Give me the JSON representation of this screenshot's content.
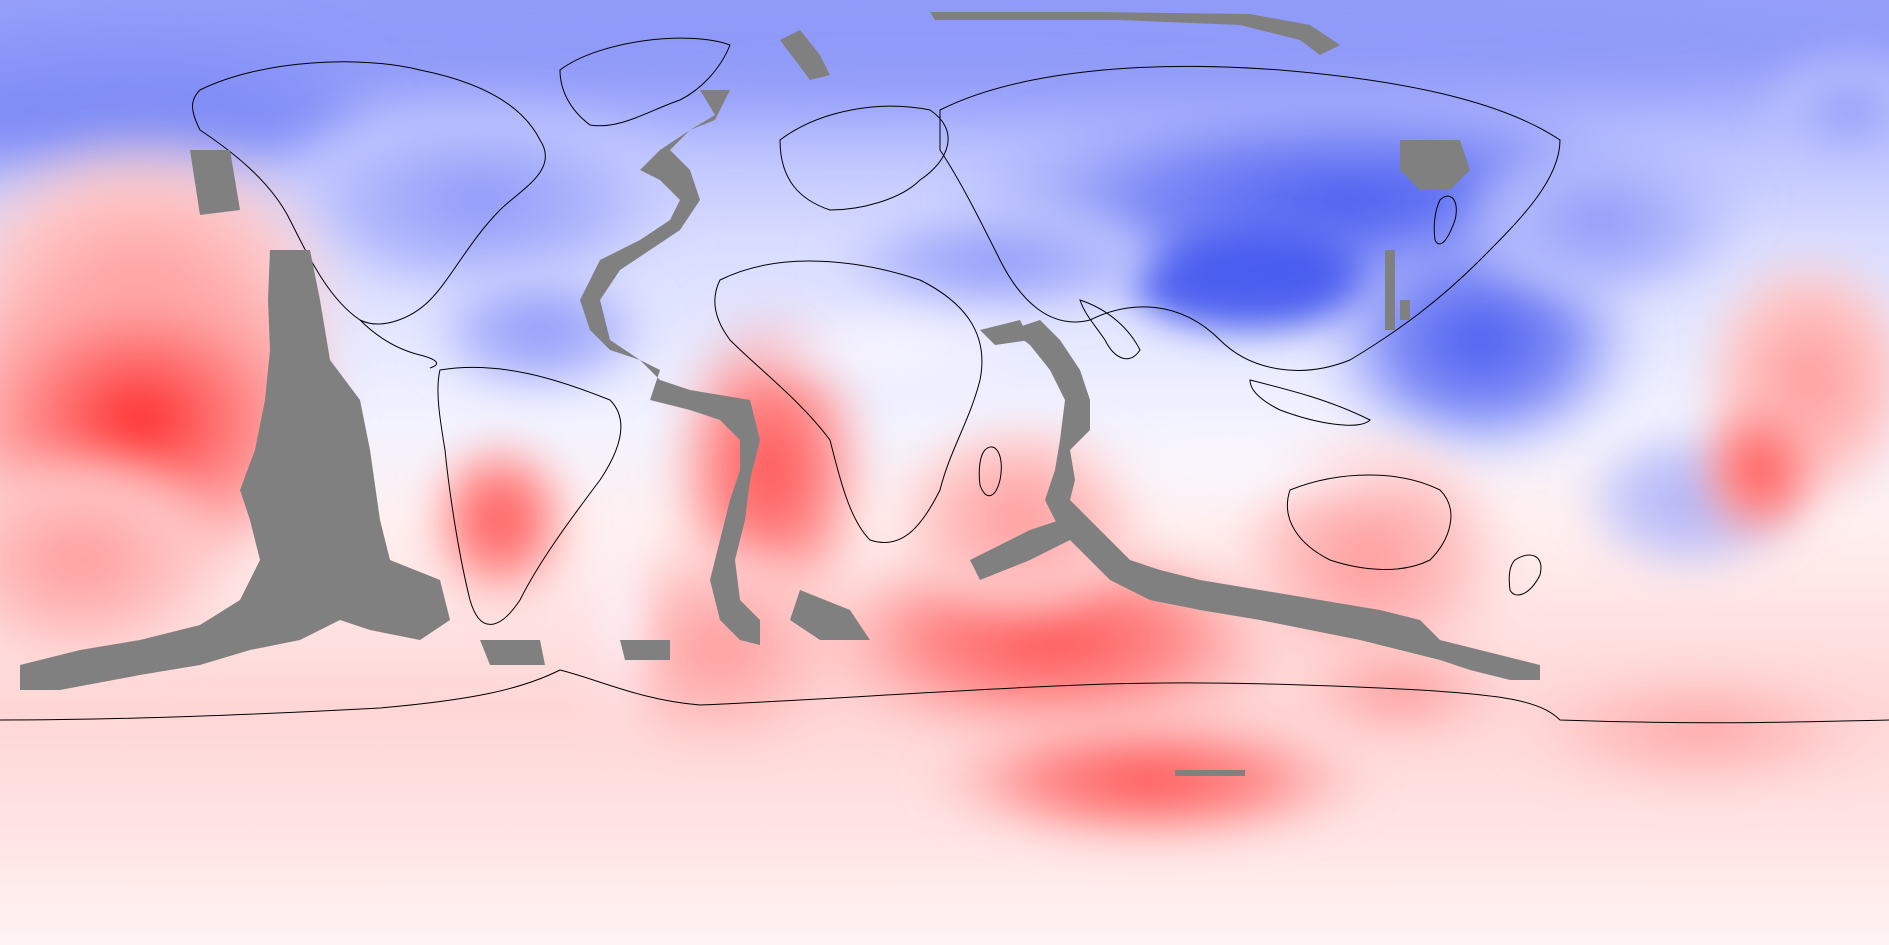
{
  "map": {
    "projection": "equirectangular",
    "lon_range": [
      -180,
      180
    ],
    "lat_range": [
      -90,
      90
    ],
    "colormap": "blue-white-red",
    "palette": {
      "deep_blue": "#5d6cf0",
      "mid_blue": "#9aa4fb",
      "light_blue": "#cfd3ff",
      "near_white": "#f3f4ff",
      "white": "#fff6f6",
      "light_red": "#ffd0d0",
      "mid_red": "#ff9c9c",
      "deep_red": "#ff2a2a",
      "mask_gray": "#808080",
      "coastline": "#000000"
    },
    "features": {
      "coastlines": true,
      "masked_plate_boundaries": true
    }
  }
}
